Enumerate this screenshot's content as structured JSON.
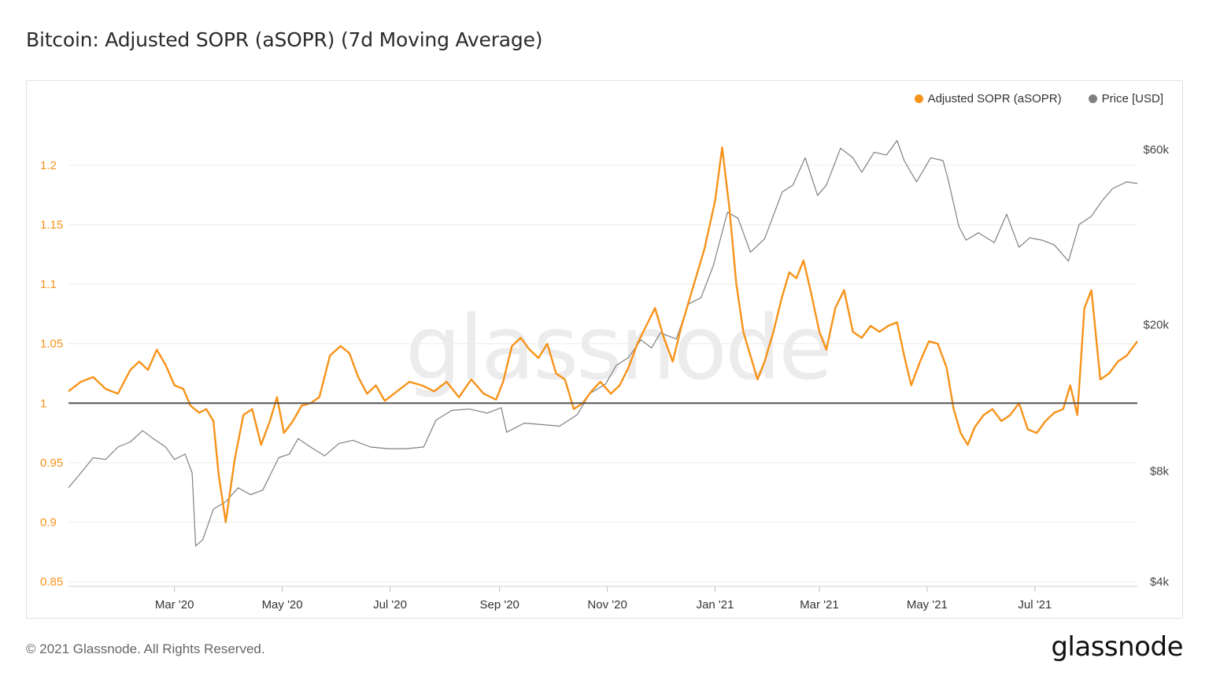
{
  "header": {
    "title": "Bitcoin: Adjusted SOPR (aSOPR) (7d Moving Average)"
  },
  "footer": {
    "copyright": "© 2021 Glassnode. All Rights Reserved.",
    "logo": "glassnode"
  },
  "watermark": "glassnode",
  "legend": {
    "items": [
      {
        "label": "Adjusted SOPR (aSOPR)",
        "color": "#f7931a"
      },
      {
        "label": "Price [USD]",
        "color": "#808080"
      }
    ]
  },
  "chart_data": {
    "type": "line",
    "x_ticks": [
      "Mar '20",
      "May '20",
      "Jul '20",
      "Sep '20",
      "Nov '20",
      "Jan '21",
      "Mar '21",
      "May '21",
      "Jul '21"
    ],
    "x_range": [
      "2020-01-01",
      "2021-08-28"
    ],
    "y_left": {
      "ticks": [
        "1.2",
        "1.15",
        "1.1",
        "1.05",
        "1",
        "0.95",
        "0.9",
        "0.85"
      ],
      "range": [
        0.85,
        1.2
      ],
      "color": "#f7931a"
    },
    "y_right": {
      "ticks": [
        "$60k",
        "$20k",
        "$8k",
        "$4k"
      ],
      "range": [
        4000,
        60000
      ],
      "scale": "log"
    },
    "reference_line": {
      "value": 1,
      "color": "#555555"
    },
    "grid": true,
    "legend_position": "top-right",
    "series": [
      {
        "name": "Adjusted SOPR (aSOPR)",
        "axis": "left",
        "color": "#f7931a",
        "points": [
          [
            "2020-01-01",
            1.01
          ],
          [
            "2020-01-08",
            1.018
          ],
          [
            "2020-01-15",
            1.022
          ],
          [
            "2020-01-22",
            1.012
          ],
          [
            "2020-01-29",
            1.008
          ],
          [
            "2020-02-05",
            1.028
          ],
          [
            "2020-02-10",
            1.035
          ],
          [
            "2020-02-15",
            1.028
          ],
          [
            "2020-02-20",
            1.045
          ],
          [
            "2020-02-25",
            1.032
          ],
          [
            "2020-03-01",
            1.015
          ],
          [
            "2020-03-06",
            1.012
          ],
          [
            "2020-03-10",
            0.998
          ],
          [
            "2020-03-15",
            0.992
          ],
          [
            "2020-03-19",
            0.995
          ],
          [
            "2020-03-23",
            0.985
          ],
          [
            "2020-03-26",
            0.94
          ],
          [
            "2020-03-30",
            0.9
          ],
          [
            "2020-04-04",
            0.952
          ],
          [
            "2020-04-09",
            0.99
          ],
          [
            "2020-04-14",
            0.995
          ],
          [
            "2020-04-19",
            0.965
          ],
          [
            "2020-04-24",
            0.985
          ],
          [
            "2020-04-28",
            1.005
          ],
          [
            "2020-05-02",
            0.975
          ],
          [
            "2020-05-07",
            0.985
          ],
          [
            "2020-05-12",
            0.998
          ],
          [
            "2020-05-17",
            1.0
          ],
          [
            "2020-05-22",
            1.005
          ],
          [
            "2020-05-28",
            1.04
          ],
          [
            "2020-06-03",
            1.048
          ],
          [
            "2020-06-08",
            1.042
          ],
          [
            "2020-06-13",
            1.022
          ],
          [
            "2020-06-18",
            1.008
          ],
          [
            "2020-06-23",
            1.015
          ],
          [
            "2020-06-28",
            1.002
          ],
          [
            "2020-07-05",
            1.01
          ],
          [
            "2020-07-12",
            1.018
          ],
          [
            "2020-07-19",
            1.015
          ],
          [
            "2020-07-26",
            1.01
          ],
          [
            "2020-08-02",
            1.018
          ],
          [
            "2020-08-09",
            1.005
          ],
          [
            "2020-08-16",
            1.02
          ],
          [
            "2020-08-23",
            1.008
          ],
          [
            "2020-08-30",
            1.003
          ],
          [
            "2020-09-03",
            1.018
          ],
          [
            "2020-09-08",
            1.048
          ],
          [
            "2020-09-13",
            1.055
          ],
          [
            "2020-09-18",
            1.045
          ],
          [
            "2020-09-23",
            1.038
          ],
          [
            "2020-09-28",
            1.05
          ],
          [
            "2020-10-03",
            1.025
          ],
          [
            "2020-10-08",
            1.02
          ],
          [
            "2020-10-13",
            0.995
          ],
          [
            "2020-10-18",
            1.0
          ],
          [
            "2020-10-23",
            1.01
          ],
          [
            "2020-10-28",
            1.018
          ],
          [
            "2020-11-03",
            1.008
          ],
          [
            "2020-11-08",
            1.015
          ],
          [
            "2020-11-13",
            1.03
          ],
          [
            "2020-11-18",
            1.05
          ],
          [
            "2020-11-23",
            1.065
          ],
          [
            "2020-11-28",
            1.08
          ],
          [
            "2020-12-03",
            1.055
          ],
          [
            "2020-12-08",
            1.035
          ],
          [
            "2020-12-13",
            1.065
          ],
          [
            "2020-12-18",
            1.09
          ],
          [
            "2020-12-22",
            1.11
          ],
          [
            "2020-12-26",
            1.13
          ],
          [
            "2021-01-01",
            1.17
          ],
          [
            "2021-01-05",
            1.215
          ],
          [
            "2021-01-09",
            1.165
          ],
          [
            "2021-01-13",
            1.1
          ],
          [
            "2021-01-17",
            1.06
          ],
          [
            "2021-01-21",
            1.04
          ],
          [
            "2021-01-25",
            1.02
          ],
          [
            "2021-01-29",
            1.035
          ],
          [
            "2021-02-03",
            1.06
          ],
          [
            "2021-02-08",
            1.09
          ],
          [
            "2021-02-12",
            1.11
          ],
          [
            "2021-02-16",
            1.105
          ],
          [
            "2021-02-20",
            1.12
          ],
          [
            "2021-02-24",
            1.095
          ],
          [
            "2021-03-01",
            1.06
          ],
          [
            "2021-03-05",
            1.045
          ],
          [
            "2021-03-10",
            1.08
          ],
          [
            "2021-03-15",
            1.095
          ],
          [
            "2021-03-20",
            1.06
          ],
          [
            "2021-03-25",
            1.055
          ],
          [
            "2021-03-30",
            1.065
          ],
          [
            "2021-04-04",
            1.06
          ],
          [
            "2021-04-09",
            1.065
          ],
          [
            "2021-04-14",
            1.068
          ],
          [
            "2021-04-18",
            1.04
          ],
          [
            "2021-04-22",
            1.015
          ],
          [
            "2021-04-27",
            1.035
          ],
          [
            "2021-05-02",
            1.052
          ],
          [
            "2021-05-07",
            1.05
          ],
          [
            "2021-05-12",
            1.03
          ],
          [
            "2021-05-16",
            0.995
          ],
          [
            "2021-05-20",
            0.975
          ],
          [
            "2021-05-24",
            0.965
          ],
          [
            "2021-05-28",
            0.98
          ],
          [
            "2021-06-02",
            0.99
          ],
          [
            "2021-06-07",
            0.995
          ],
          [
            "2021-06-12",
            0.985
          ],
          [
            "2021-06-17",
            0.99
          ],
          [
            "2021-06-22",
            1.0
          ],
          [
            "2021-06-27",
            0.978
          ],
          [
            "2021-07-02",
            0.975
          ],
          [
            "2021-07-07",
            0.985
          ],
          [
            "2021-07-12",
            0.992
          ],
          [
            "2021-07-17",
            0.995
          ],
          [
            "2021-07-21",
            1.015
          ],
          [
            "2021-07-25",
            0.99
          ],
          [
            "2021-07-29",
            1.08
          ],
          [
            "2021-08-02",
            1.095
          ],
          [
            "2021-08-07",
            1.02
          ],
          [
            "2021-08-12",
            1.025
          ],
          [
            "2021-08-17",
            1.035
          ],
          [
            "2021-08-22",
            1.04
          ],
          [
            "2021-08-28",
            1.052
          ]
        ]
      },
      {
        "name": "Price [USD]",
        "axis": "right",
        "color": "#808080",
        "points": [
          [
            "2020-01-01",
            7200
          ],
          [
            "2020-01-08",
            7900
          ],
          [
            "2020-01-15",
            8700
          ],
          [
            "2020-01-22",
            8600
          ],
          [
            "2020-01-29",
            9300
          ],
          [
            "2020-02-05",
            9600
          ],
          [
            "2020-02-12",
            10300
          ],
          [
            "2020-02-18",
            9800
          ],
          [
            "2020-02-25",
            9300
          ],
          [
            "2020-03-01",
            8600
          ],
          [
            "2020-03-07",
            8900
          ],
          [
            "2020-03-11",
            7900
          ],
          [
            "2020-03-13",
            5000
          ],
          [
            "2020-03-17",
            5200
          ],
          [
            "2020-03-23",
            6300
          ],
          [
            "2020-03-30",
            6600
          ],
          [
            "2020-04-06",
            7200
          ],
          [
            "2020-04-13",
            6900
          ],
          [
            "2020-04-20",
            7100
          ],
          [
            "2020-04-29",
            8700
          ],
          [
            "2020-05-05",
            8900
          ],
          [
            "2020-05-10",
            9800
          ],
          [
            "2020-05-17",
            9300
          ],
          [
            "2020-05-25",
            8800
          ],
          [
            "2020-06-02",
            9500
          ],
          [
            "2020-06-10",
            9700
          ],
          [
            "2020-06-20",
            9300
          ],
          [
            "2020-06-30",
            9200
          ],
          [
            "2020-07-10",
            9200
          ],
          [
            "2020-07-20",
            9300
          ],
          [
            "2020-07-27",
            11000
          ],
          [
            "2020-08-05",
            11700
          ],
          [
            "2020-08-15",
            11800
          ],
          [
            "2020-08-25",
            11500
          ],
          [
            "2020-09-02",
            11900
          ],
          [
            "2020-09-05",
            10200
          ],
          [
            "2020-09-15",
            10800
          ],
          [
            "2020-09-25",
            10700
          ],
          [
            "2020-10-05",
            10600
          ],
          [
            "2020-10-15",
            11400
          ],
          [
            "2020-10-22",
            13000
          ],
          [
            "2020-10-31",
            13800
          ],
          [
            "2020-11-06",
            15500
          ],
          [
            "2020-11-13",
            16300
          ],
          [
            "2020-11-20",
            18200
          ],
          [
            "2020-11-26",
            17300
          ],
          [
            "2020-12-01",
            19000
          ],
          [
            "2020-12-10",
            18300
          ],
          [
            "2020-12-17",
            22800
          ],
          [
            "2020-12-24",
            23700
          ],
          [
            "2020-12-31",
            29000
          ],
          [
            "2021-01-08",
            40500
          ],
          [
            "2021-01-14",
            39000
          ],
          [
            "2021-01-21",
            31500
          ],
          [
            "2021-01-29",
            34300
          ],
          [
            "2021-02-08",
            46000
          ],
          [
            "2021-02-14",
            48000
          ],
          [
            "2021-02-21",
            57000
          ],
          [
            "2021-02-28",
            45000
          ],
          [
            "2021-03-05",
            48000
          ],
          [
            "2021-03-13",
            60500
          ],
          [
            "2021-03-20",
            57000
          ],
          [
            "2021-03-25",
            52000
          ],
          [
            "2021-04-01",
            59000
          ],
          [
            "2021-04-08",
            58000
          ],
          [
            "2021-04-14",
            63500
          ],
          [
            "2021-04-18",
            56000
          ],
          [
            "2021-04-25",
            49000
          ],
          [
            "2021-05-03",
            57000
          ],
          [
            "2021-05-10",
            56000
          ],
          [
            "2021-05-13",
            49500
          ],
          [
            "2021-05-19",
            37000
          ],
          [
            "2021-05-23",
            34000
          ],
          [
            "2021-05-30",
            35600
          ],
          [
            "2021-06-08",
            33500
          ],
          [
            "2021-06-15",
            40000
          ],
          [
            "2021-06-22",
            32500
          ],
          [
            "2021-06-28",
            34500
          ],
          [
            "2021-07-05",
            34000
          ],
          [
            "2021-07-12",
            33000
          ],
          [
            "2021-07-20",
            29800
          ],
          [
            "2021-07-26",
            37500
          ],
          [
            "2021-08-02",
            39500
          ],
          [
            "2021-08-08",
            43500
          ],
          [
            "2021-08-14",
            47000
          ],
          [
            "2021-08-22",
            49000
          ],
          [
            "2021-08-28",
            48500
          ]
        ]
      }
    ]
  }
}
